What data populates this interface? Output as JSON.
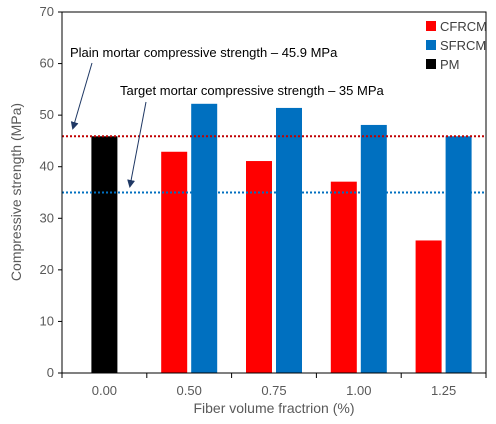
{
  "chart_data": {
    "type": "bar",
    "xlabel": "Fiber volume fractrion (%)",
    "ylabel": "Compressive strength (MPa)",
    "ylim": [
      0,
      70
    ],
    "yticks": [
      "0",
      "10",
      "20",
      "30",
      "40",
      "50",
      "60",
      "70"
    ],
    "categories": [
      "0.00",
      "0.50",
      "0.75",
      "1.00",
      "1.25"
    ],
    "series": [
      {
        "name": "CFRCM",
        "color": "#ff0000",
        "values": [
          null,
          42.9,
          41.1,
          37.1,
          25.7
        ]
      },
      {
        "name": "SFRCM",
        "color": "#0070c0",
        "values": [
          null,
          52.2,
          51.4,
          48.1,
          45.9
        ]
      },
      {
        "name": "PM",
        "color": "#000000",
        "values": [
          45.9,
          null,
          null,
          null,
          null
        ]
      }
    ],
    "reference_lines": [
      {
        "label": "Plain mortar compressive strength – 45.9 MPa",
        "value": 45.9,
        "color": "#c00000"
      },
      {
        "label": "Target mortar compressive strength – 35 MPa",
        "value": 35,
        "color": "#0070c0"
      }
    ],
    "legend_position": "top-right",
    "grid": false
  }
}
